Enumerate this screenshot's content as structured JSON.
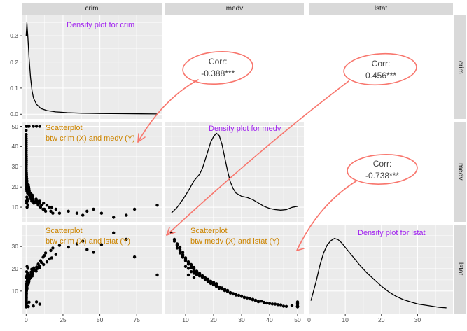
{
  "strips": {
    "top": [
      "crim",
      "medv",
      "lstat"
    ],
    "right": [
      "crim",
      "medv",
      "lstat"
    ]
  },
  "colors": {
    "panel_bg": "#EBEBEB",
    "corr_panel_bg": "#FFFFFF",
    "grid_major": "#FFFFFF",
    "grid_minor": "#FFFFFF",
    "point": "#000000",
    "density_line": "#000000",
    "strip_bg": "#D9D9D9",
    "strip_text": "#1A1A1A",
    "axis_text": "#4D4D4D",
    "tick_mark": "#333333",
    "annotation_density": "#A020F0",
    "annotation_scatter": "#CD8500",
    "corr_text": "#404040",
    "red_marker": "#F8766D"
  },
  "panels": {
    "crim_crim": {
      "annotation": "Density plot for crim"
    },
    "medv_crim": {
      "annotation_lines": [
        "Scatterplot",
        "btw crim (X) and medv (Y)"
      ]
    },
    "medv_medv": {
      "annotation": "Density plot for medv"
    },
    "lstat_crim": {
      "annotation_lines": [
        "Scatterplot",
        "btw crim (X) and lstat (Y)"
      ]
    },
    "lstat_medv": {
      "annotation_lines": [
        "Scatterplot",
        "btw medv (X) and lstat (Y)"
      ]
    },
    "lstat_lstat": {
      "annotation": "Density plot for lstat"
    }
  },
  "chart_data": {
    "type": "scatter-matrix",
    "variables": [
      "crim",
      "medv",
      "lstat"
    ],
    "correlations": [
      {
        "x": "medv",
        "y": "crim",
        "label": "Corr:",
        "value": "-0.388***"
      },
      {
        "x": "lstat",
        "y": "crim",
        "label": "Corr:",
        "value": "0.456***"
      },
      {
        "x": "lstat",
        "y": "medv",
        "label": "Corr:",
        "value": "-0.738***"
      }
    ],
    "axes": {
      "x": {
        "crim": {
          "ticks": [
            "0",
            "25",
            "50",
            "75"
          ],
          "values": [
            0,
            25,
            50,
            75
          ],
          "domain": [
            -3,
            92
          ]
        },
        "medv": {
          "ticks": [
            "10",
            "20",
            "30",
            "40",
            "50"
          ],
          "values": [
            10,
            20,
            30,
            40,
            50
          ],
          "domain": [
            2.75,
            52.25
          ]
        },
        "lstat": {
          "ticks": [
            "0",
            "10",
            "20",
            "30"
          ],
          "values": [
            0,
            10,
            20,
            30
          ],
          "domain": [
            -0.1,
            39.8
          ]
        }
      },
      "y": {
        "crim_density": {
          "ticks": [
            "0.0",
            "0.1",
            "0.2",
            "0.3"
          ],
          "values": [
            0,
            0.1,
            0.2,
            0.3
          ],
          "domain": [
            -0.018,
            0.378
          ]
        },
        "medv": {
          "ticks": [
            "10",
            "20",
            "30",
            "40",
            "50"
          ],
          "values": [
            10,
            20,
            30,
            40,
            50
          ],
          "domain": [
            2.75,
            52.25
          ]
        },
        "lstat": {
          "ticks": [
            "10",
            "20",
            "30"
          ],
          "values": [
            10,
            20,
            30
          ],
          "domain": [
            -0.1,
            39.8
          ]
        }
      }
    },
    "densities": {
      "crim": {
        "x": [
          0,
          0.5,
          1.2,
          2,
          3,
          4,
          5,
          7,
          10,
          14,
          20,
          28,
          38,
          50,
          65,
          78,
          89
        ],
        "y": [
          0.3,
          0.35,
          0.295,
          0.215,
          0.14,
          0.09,
          0.062,
          0.038,
          0.022,
          0.014,
          0.009,
          0.006,
          0.004,
          0.003,
          0.002,
          0.0015,
          0.001
        ]
      },
      "medv": {
        "x": [
          5,
          7,
          9,
          11,
          13,
          14,
          15,
          16,
          17,
          18,
          19,
          20,
          21,
          22,
          23,
          24,
          25,
          26,
          27,
          28,
          30,
          32,
          34,
          36,
          38,
          40,
          42,
          44,
          46,
          48,
          50
        ],
        "y": [
          0.004,
          0.009,
          0.016,
          0.024,
          0.033,
          0.036,
          0.039,
          0.044,
          0.052,
          0.06,
          0.068,
          0.073,
          0.076,
          0.074,
          0.066,
          0.054,
          0.042,
          0.032,
          0.026,
          0.022,
          0.019,
          0.018,
          0.016,
          0.013,
          0.01,
          0.008,
          0.007,
          0.0065,
          0.007,
          0.009,
          0.01
        ]
      },
      "lstat": {
        "x": [
          0.5,
          2,
          3,
          4,
          5,
          6,
          7,
          8,
          9,
          10,
          12,
          14,
          16,
          18,
          20,
          22,
          24,
          26,
          28,
          30,
          32,
          34,
          36,
          38
        ],
        "y": [
          0.008,
          0.026,
          0.04,
          0.051,
          0.058,
          0.062,
          0.064,
          0.063,
          0.06,
          0.056,
          0.048,
          0.04,
          0.033,
          0.027,
          0.021,
          0.016,
          0.012,
          0.009,
          0.007,
          0.005,
          0.004,
          0.003,
          0.002,
          0.0015
        ]
      }
    },
    "dataset_columns": [
      "crim",
      "medv",
      "lstat"
    ],
    "dataset": [
      [
        0.01,
        45,
        3.2
      ],
      [
        0.02,
        42,
        4.1
      ],
      [
        0.01,
        50,
        2.9
      ],
      [
        0.03,
        38,
        4.8
      ],
      [
        0.02,
        36,
        5.2
      ],
      [
        0.04,
        34,
        6.1
      ],
      [
        0.01,
        48,
        3.5
      ],
      [
        0.05,
        33,
        6.6
      ],
      [
        0.03,
        41,
        4.2
      ],
      [
        0.02,
        44,
        3.8
      ],
      [
        0.06,
        31,
        7.2
      ],
      [
        0.04,
        37,
        5.5
      ],
      [
        0.03,
        35,
        5.9
      ],
      [
        0.05,
        30,
        7.8
      ],
      [
        0.08,
        29,
        8.1
      ],
      [
        0.02,
        46,
        3.1
      ],
      [
        0.07,
        32,
        6.9
      ],
      [
        0.04,
        39,
        4.6
      ],
      [
        0.06,
        28,
        8.4
      ],
      [
        0.03,
        43,
        3.9
      ],
      [
        0.09,
        27,
        8.9
      ],
      [
        0.05,
        36,
        5.4
      ],
      [
        0.11,
        26,
        9.3
      ],
      [
        0.07,
        31,
        7.1
      ],
      [
        0.04,
        40,
        4.4
      ],
      [
        0.1,
        28,
        8.2
      ],
      [
        0.06,
        34,
        6.3
      ],
      [
        0.13,
        25,
        9.8
      ],
      [
        0.08,
        30,
        7.6
      ],
      [
        0.05,
        38,
        4.9
      ],
      [
        0.12,
        27,
        8.7
      ],
      [
        0.09,
        33,
        6.5
      ],
      [
        0.15,
        24,
        10.2
      ],
      [
        0.07,
        35,
        5.7
      ],
      [
        0.18,
        26,
        9.1
      ],
      [
        0.22,
        23,
        11.0
      ],
      [
        0.14,
        22,
        11.5
      ],
      [
        0.26,
        21,
        12.1
      ],
      [
        0.19,
        24,
        10.5
      ],
      [
        0.31,
        20,
        12.8
      ],
      [
        0.24,
        23,
        10.9
      ],
      [
        0.38,
        19,
        13.4
      ],
      [
        0.17,
        25,
        10.1
      ],
      [
        0.44,
        21,
        12.3
      ],
      [
        0.29,
        22,
        11.2
      ],
      [
        0.52,
        20,
        13.0
      ],
      [
        0.35,
        23,
        11.4
      ],
      [
        0.61,
        19,
        13.9
      ],
      [
        0.27,
        24,
        10.7
      ],
      [
        0.48,
        18,
        14.3
      ],
      [
        0.33,
        21,
        12.5
      ],
      [
        0.72,
        20,
        13.2
      ],
      [
        0.41,
        22,
        11.8
      ],
      [
        0.85,
        18,
        14.8
      ],
      [
        0.55,
        19,
        13.6
      ],
      [
        0.23,
        25,
        10.3
      ],
      [
        0.67,
        21,
        12.6
      ],
      [
        0.36,
        20,
        12.9
      ],
      [
        0.94,
        17,
        15.2
      ],
      [
        0.46,
        22,
        11.6
      ],
      [
        0.58,
        23,
        11.1
      ],
      [
        0.76,
        19,
        13.8
      ],
      [
        0.39,
        24,
        10.6
      ],
      [
        0.88,
        18,
        14.5
      ],
      [
        0.64,
        20,
        13.1
      ],
      [
        1.1,
        18,
        14.9
      ],
      [
        1.6,
        17,
        15.8
      ],
      [
        1.3,
        19,
        14.1
      ],
      [
        2.2,
        16,
        16.5
      ],
      [
        1.8,
        18,
        15.1
      ],
      [
        2.9,
        15,
        17.4
      ],
      [
        1.4,
        20,
        13.7
      ],
      [
        3.5,
        14,
        18.2
      ],
      [
        2.4,
        17,
        15.6
      ],
      [
        4.2,
        13,
        19.3
      ],
      [
        1.9,
        19,
        14.4
      ],
      [
        3.1,
        16,
        16.9
      ],
      [
        2.7,
        15,
        17.1
      ],
      [
        4.8,
        14,
        18.8
      ],
      [
        2.1,
        18,
        15.3
      ],
      [
        3.8,
        13,
        19.8
      ],
      [
        1.5,
        21,
        13.3
      ],
      [
        4.5,
        15,
        17.7
      ],
      [
        2.6,
        16,
        16.2
      ],
      [
        3.3,
        14,
        18.5
      ],
      [
        5.2,
        12,
        20.4
      ],
      [
        1.7,
        20,
        13.9
      ],
      [
        4.1,
        16,
        16.7
      ],
      [
        2.8,
        17,
        15.9
      ],
      [
        3.6,
        15,
        17.9
      ],
      [
        6.5,
        13,
        19.5
      ],
      [
        8.2,
        11,
        22.1
      ],
      [
        7.1,
        12,
        20.8
      ],
      [
        9.8,
        10,
        23.6
      ],
      [
        6.8,
        14,
        18.9
      ],
      [
        11.5,
        9,
        25.2
      ],
      [
        8.9,
        12,
        21.3
      ],
      [
        13.2,
        8,
        27.1
      ],
      [
        7.6,
        13,
        20.1
      ],
      [
        15.8,
        10,
        24.4
      ],
      [
        10.4,
        11,
        22.8
      ],
      [
        18.1,
        7,
        29.3
      ],
      [
        12.3,
        9,
        25.9
      ],
      [
        9.2,
        13,
        20.6
      ],
      [
        16.7,
        8,
        28.2
      ],
      [
        14.1,
        11,
        23.1
      ],
      [
        20.2,
        9,
        26.4
      ],
      [
        11.8,
        12,
        21.9
      ],
      [
        22.6,
        7,
        30.5
      ],
      [
        17.4,
        10,
        24.9
      ],
      [
        28.7,
        8,
        29.7
      ],
      [
        34.5,
        7,
        31.2
      ],
      [
        41.3,
        8,
        28.6
      ],
      [
        38.4,
        6,
        32.4
      ],
      [
        51.1,
        7,
        30.8
      ],
      [
        45.7,
        9,
        27.4
      ],
      [
        67.9,
        6,
        33.2
      ],
      [
        59.3,
        5,
        36.1
      ],
      [
        73.5,
        9,
        25.3
      ],
      [
        88.9,
        11,
        17.2
      ],
      [
        0.02,
        50,
        3.1
      ],
      [
        0.33,
        50,
        4.5
      ],
      [
        0.55,
        50,
        3.2
      ],
      [
        1.5,
        50,
        3.0
      ],
      [
        2.0,
        50,
        5.0
      ],
      [
        4.9,
        50,
        3.3
      ],
      [
        7.0,
        50,
        5.1
      ],
      [
        9.2,
        50,
        4.1
      ],
      [
        0.2,
        13,
        16.1
      ],
      [
        0.35,
        12,
        18.7
      ],
      [
        0.6,
        10,
        21.0
      ],
      [
        0.8,
        14,
        17.3
      ],
      [
        1.2,
        11,
        20.2
      ],
      [
        0.45,
        15,
        16.8
      ],
      [
        0.95,
        13,
        18.0
      ]
    ]
  }
}
